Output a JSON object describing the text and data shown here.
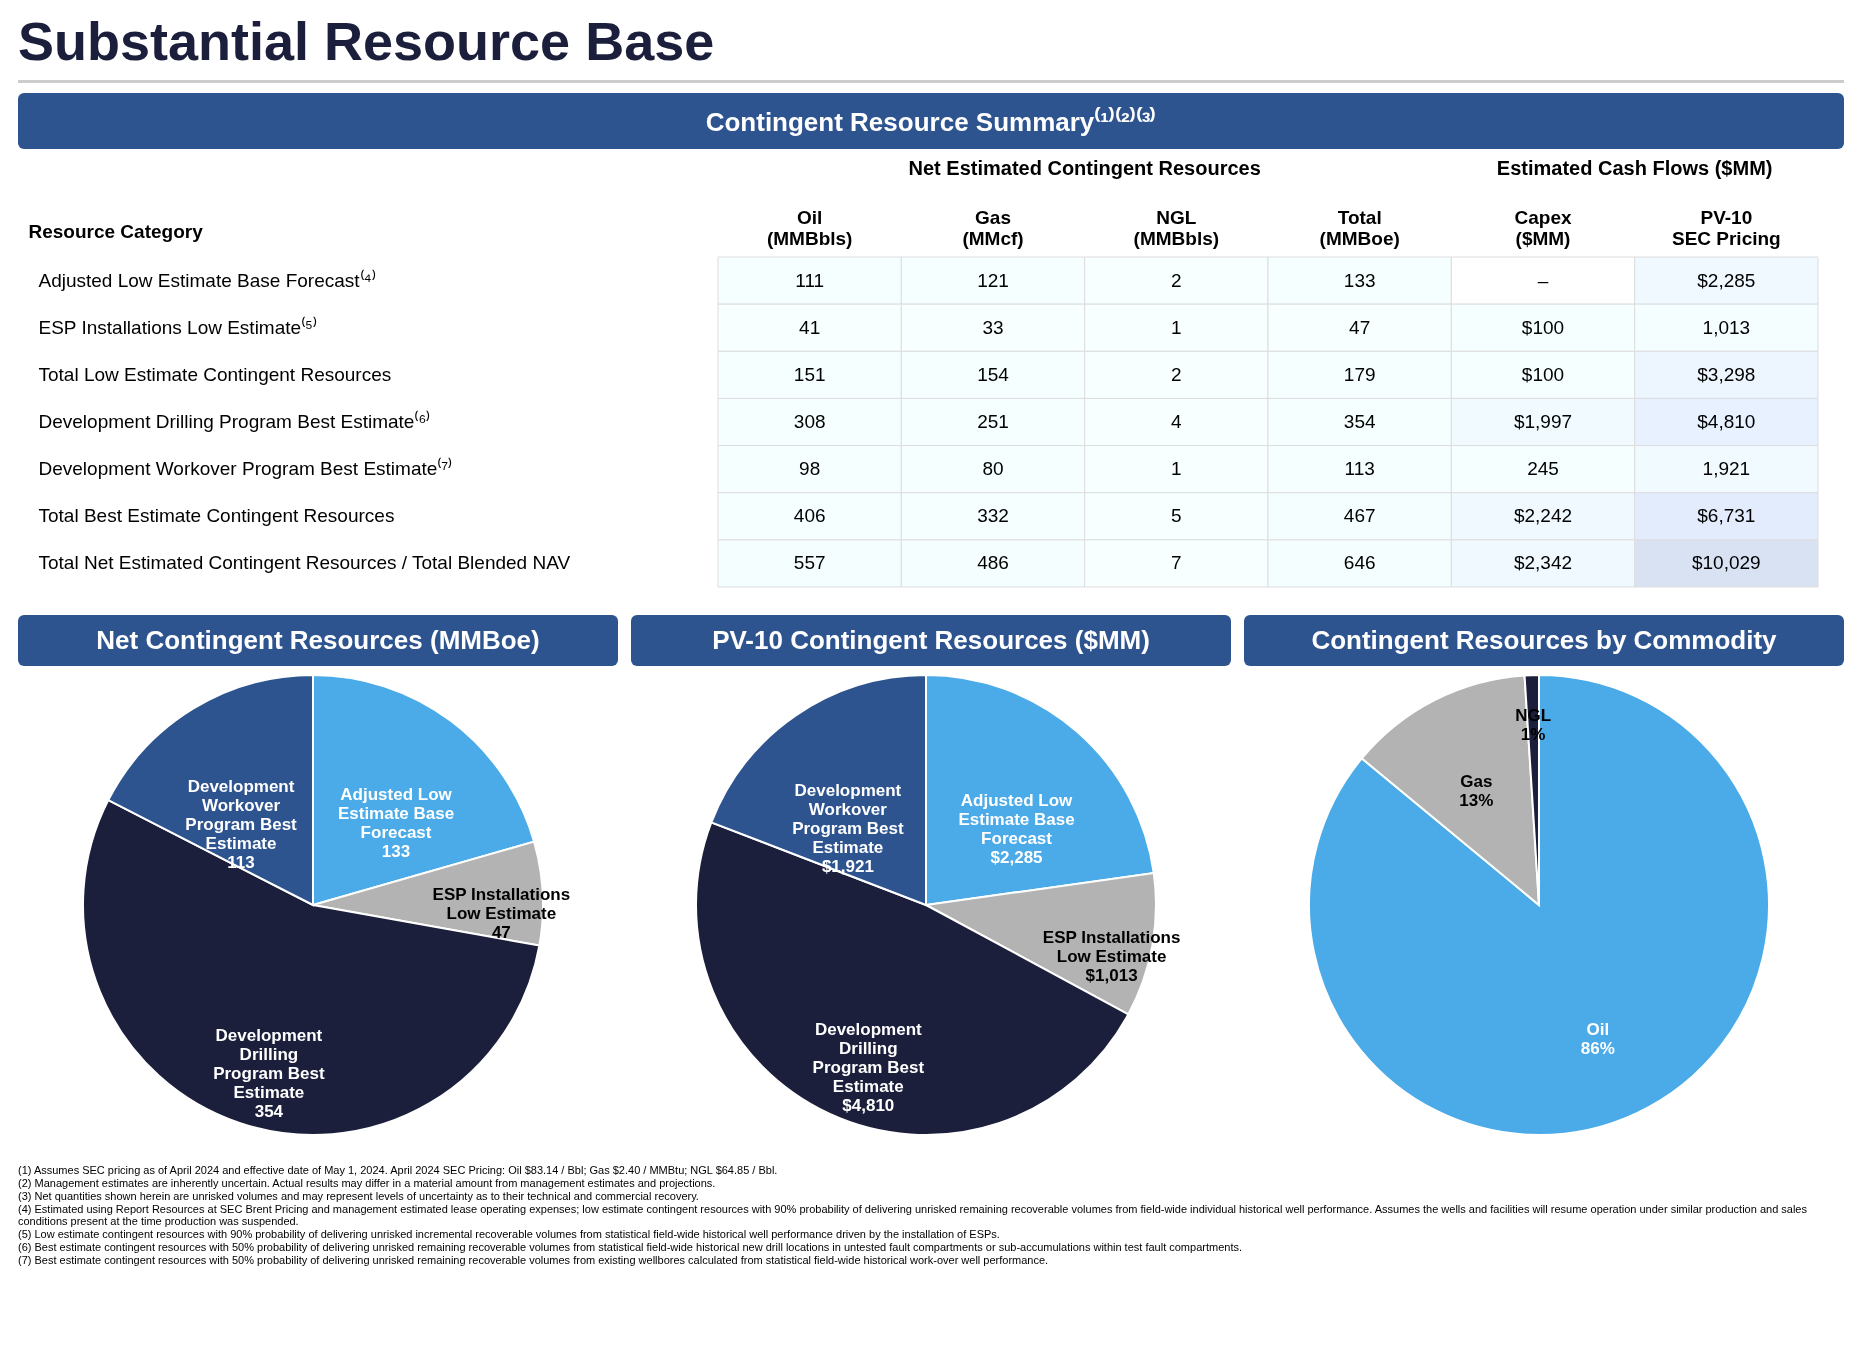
{
  "chart_data": [
    {
      "type": "heatmap",
      "title": "Substantial Resource Base",
      "subtitle": "Contingent Resource Summary⁽¹⁾⁽²⁾⁽³⁾",
      "ylabel": "Resource Category",
      "annotations": [
        "Net Estimated Contingent Resources",
        "Estimated Cash Flows ($MM)"
      ],
      "categories": [
        "Oil (MMBbls)",
        "Gas (MMcf)",
        "NGL (MMBbls)",
        "Total (MMBoe)",
        "Capex ($MM)",
        "PV-10 SEC Pricing"
      ],
      "y_categories": [
        "Adjusted Low Estimate Base Forecast⁽⁴⁾",
        "ESP Installations Low Estimate⁽⁵⁾",
        "Total Low Estimate Contingent Resources",
        "Development Drilling Program Best Estimate⁽⁶⁾",
        "Development Workover Program Best Estimate⁽⁷⁾",
        "Total Best Estimate Contingent Resources",
        "Total Net Estimated Contingent Resources / Total Blended NAV"
      ],
      "cells": [
        [
          111,
          121,
          2,
          133,
          null,
          2285
        ],
        [
          41,
          33,
          1,
          47,
          100,
          1013
        ],
        [
          151,
          154,
          2,
          179,
          100,
          3298
        ],
        [
          308,
          251,
          4,
          354,
          1997,
          4810
        ],
        [
          98,
          80,
          1,
          113,
          245,
          1921
        ],
        [
          406,
          332,
          5,
          467,
          2242,
          6731
        ],
        [
          557,
          486,
          7,
          646,
          2342,
          10029
        ]
      ],
      "cell_labels": [
        [
          "111",
          "121",
          "2",
          "133",
          "–",
          "$2,285"
        ],
        [
          "41",
          "33",
          "1",
          "47",
          "$100",
          "1,013"
        ],
        [
          "151",
          "154",
          "2",
          "179",
          "$100",
          "$3,298"
        ],
        [
          "308",
          "251",
          "4",
          "354",
          "$1,997",
          "$4,810"
        ],
        [
          "98",
          "80",
          "1",
          "113",
          "245",
          "1,921"
        ],
        [
          "406",
          "332",
          "5",
          "467",
          "$2,242",
          "$6,731"
        ],
        [
          "557",
          "486",
          "7",
          "646",
          "$2,342",
          "$10,029"
        ]
      ]
    },
    {
      "type": "pie",
      "title": "Net Contingent Resources (MMBoe)",
      "data_labels": true,
      "categories": [
        "Adjusted Low Estimate Base Forecast",
        "ESP Installations Low Estimate",
        "Development Drilling Program Best Estimate",
        "Development Workover Program Best Estimate"
      ],
      "values": [
        133,
        47,
        354,
        113
      ],
      "colors": [
        "#4baae8",
        "#b3b3b3",
        "#1b1f3b",
        "#2e5490"
      ]
    },
    {
      "type": "pie",
      "title": "PV-10 Contingent Resources ($MM)",
      "categories": [
        "Adjusted Low Estimate Base Forecast",
        "ESP Installations Low Estimate",
        "Development Drilling Program Best Estimate",
        "Development Workover Program Best Estimate"
      ],
      "values": [
        2285,
        1013,
        4810,
        1921
      ],
      "value_labels": [
        "$2,285",
        "$1,013",
        "$4,810",
        "$1,921"
      ],
      "colors": [
        "#4baae8",
        "#b3b3b3",
        "#1b1f3b",
        "#2e5490"
      ]
    },
    {
      "type": "pie",
      "title": "Contingent Resources by Commodity",
      "categories": [
        "Oil",
        "Gas",
        "NGL"
      ],
      "values": [
        86,
        13,
        1
      ],
      "value_labels": [
        "86%",
        "13%",
        "1%"
      ],
      "colors": [
        "#4baae8",
        "#b3b3b3",
        "#1b1f3b"
      ],
      "annotations": [
        "(1) Assumes SEC pricing as of April 2024 and effective date of May 1, 2024. April 2024 SEC Pricing: Oil $83.14 / Bbl; Gas $2.40 / MMBtu; NGL $64.85 / Bbl.",
        "(2) Management estimates are inherently uncertain. Actual results may differ in a material amount from management estimates and projections.",
        "(3) Net quantities shown herein are unrisked volumes and may represent levels of uncertainty as to their technical and commercial recovery.",
        "(4) Estimated using Report Resources at SEC Brent Pricing and management estimated lease operating expenses; low estimate contingent resources with 90% probability of delivering unrisked remaining recoverable volumes from field-wide individual historical well performance. Assumes the wells and facilities will resume operation under similar production and sales conditions present at the time production was suspended.",
        "(5) Low estimate contingent resources with 90% probability of delivering unrisked incremental recoverable volumes from statistical field-wide historical well performance driven by the installation of ESPs.",
        "(6) Best estimate contingent resources with 50% probability of delivering unrisked remaining recoverable volumes from statistical field-wide historical new drill locations in untested fault compartments or sub-accumulations within test fault compartments.",
        "(7) Best estimate contingent resources with 50% probability of delivering unrisked remaining recoverable volumes from existing wellbores calculated from statistical field-wide historical work-over well performance."
      ]
    }
  ]
}
